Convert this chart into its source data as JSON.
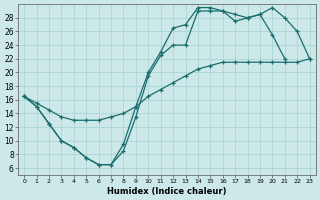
{
  "xlabel": "Humidex (Indice chaleur)",
  "bg_color": "#cce8e8",
  "line_color": "#1a6e6e",
  "grid_color": "#b0d8d8",
  "xlim": [
    -0.5,
    23.5
  ],
  "ylim": [
    5.0,
    30.0
  ],
  "yticks": [
    6,
    8,
    10,
    12,
    14,
    16,
    18,
    20,
    22,
    24,
    26,
    28
  ],
  "xticks": [
    0,
    1,
    2,
    3,
    4,
    5,
    6,
    7,
    8,
    9,
    10,
    11,
    12,
    13,
    14,
    15,
    16,
    17,
    18,
    19,
    20,
    21,
    22,
    23
  ],
  "line_dip_x": [
    0,
    1,
    2,
    3,
    4,
    5,
    6,
    7,
    8,
    9,
    10,
    11,
    12,
    13,
    14,
    15,
    16,
    17,
    18,
    19,
    20,
    21
  ],
  "line_dip_y": [
    16.5,
    15.0,
    12.5,
    10.0,
    9.0,
    7.5,
    6.5,
    6.5,
    8.5,
    13.5,
    19.5,
    22.5,
    24.0,
    24.0,
    29.0,
    29.0,
    29.0,
    27.5,
    28.0,
    28.5,
    25.5,
    22.0
  ],
  "line_upper_x": [
    0,
    1,
    2,
    3,
    4,
    5,
    6,
    7,
    8,
    9,
    10,
    11,
    12,
    13,
    14,
    15,
    16,
    17,
    18,
    19,
    20,
    21,
    22,
    23
  ],
  "line_upper_y": [
    16.5,
    15.0,
    12.5,
    10.0,
    9.0,
    7.5,
    6.5,
    6.5,
    9.5,
    15.0,
    20.0,
    23.0,
    26.5,
    27.0,
    29.5,
    29.5,
    29.0,
    28.5,
    28.0,
    28.5,
    29.5,
    28.0,
    26.0,
    22.0
  ],
  "line_diag_x": [
    0,
    1,
    2,
    3,
    4,
    5,
    6,
    7,
    8,
    9,
    10,
    11,
    12,
    13,
    14,
    15,
    16,
    17,
    18,
    19,
    20,
    21,
    22,
    23
  ],
  "line_diag_y": [
    16.5,
    15.5,
    14.5,
    13.5,
    13.0,
    13.0,
    13.0,
    13.5,
    14.0,
    15.0,
    16.5,
    17.5,
    18.5,
    19.5,
    20.5,
    21.0,
    21.5,
    21.5,
    21.5,
    21.5,
    21.5,
    21.5,
    21.5,
    22.0
  ]
}
